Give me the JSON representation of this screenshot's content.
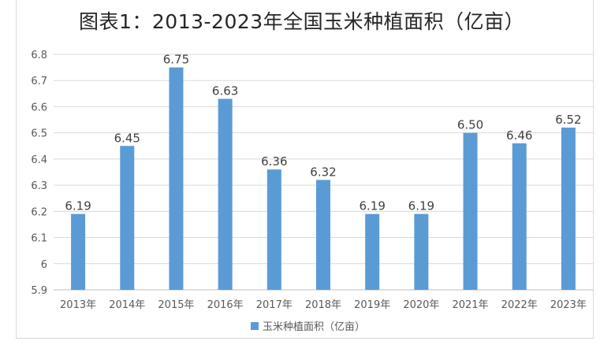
{
  "chart_data": {
    "type": "bar",
    "title": "图表1：2013-2023年全国玉米种植面积（亿亩）",
    "categories": [
      "2013年",
      "2014年",
      "2015年",
      "2016年",
      "2017年",
      "2018年",
      "2019年",
      "2020年",
      "2021年",
      "2022年",
      "2023年"
    ],
    "series": [
      {
        "name": "玉米种植面积（亿亩）",
        "values": [
          6.19,
          6.45,
          6.75,
          6.63,
          6.36,
          6.32,
          6.19,
          6.19,
          6.5,
          6.46,
          6.52
        ],
        "data_labels": [
          "6.19",
          "6.45",
          "6.75",
          "6.63",
          "6.36",
          "6.32",
          "6.19",
          "6.19",
          "6.50",
          "6.46",
          "6.52"
        ]
      }
    ],
    "yticks": [
      "5.9",
      "6",
      "6.1",
      "6.2",
      "6.3",
      "6.4",
      "6.5",
      "6.6",
      "6.7",
      "6.8"
    ],
    "ylim": [
      5.9,
      6.8
    ],
    "grid": true,
    "legend": "bottom",
    "colors": {
      "bar": "#5b9bd5"
    }
  }
}
